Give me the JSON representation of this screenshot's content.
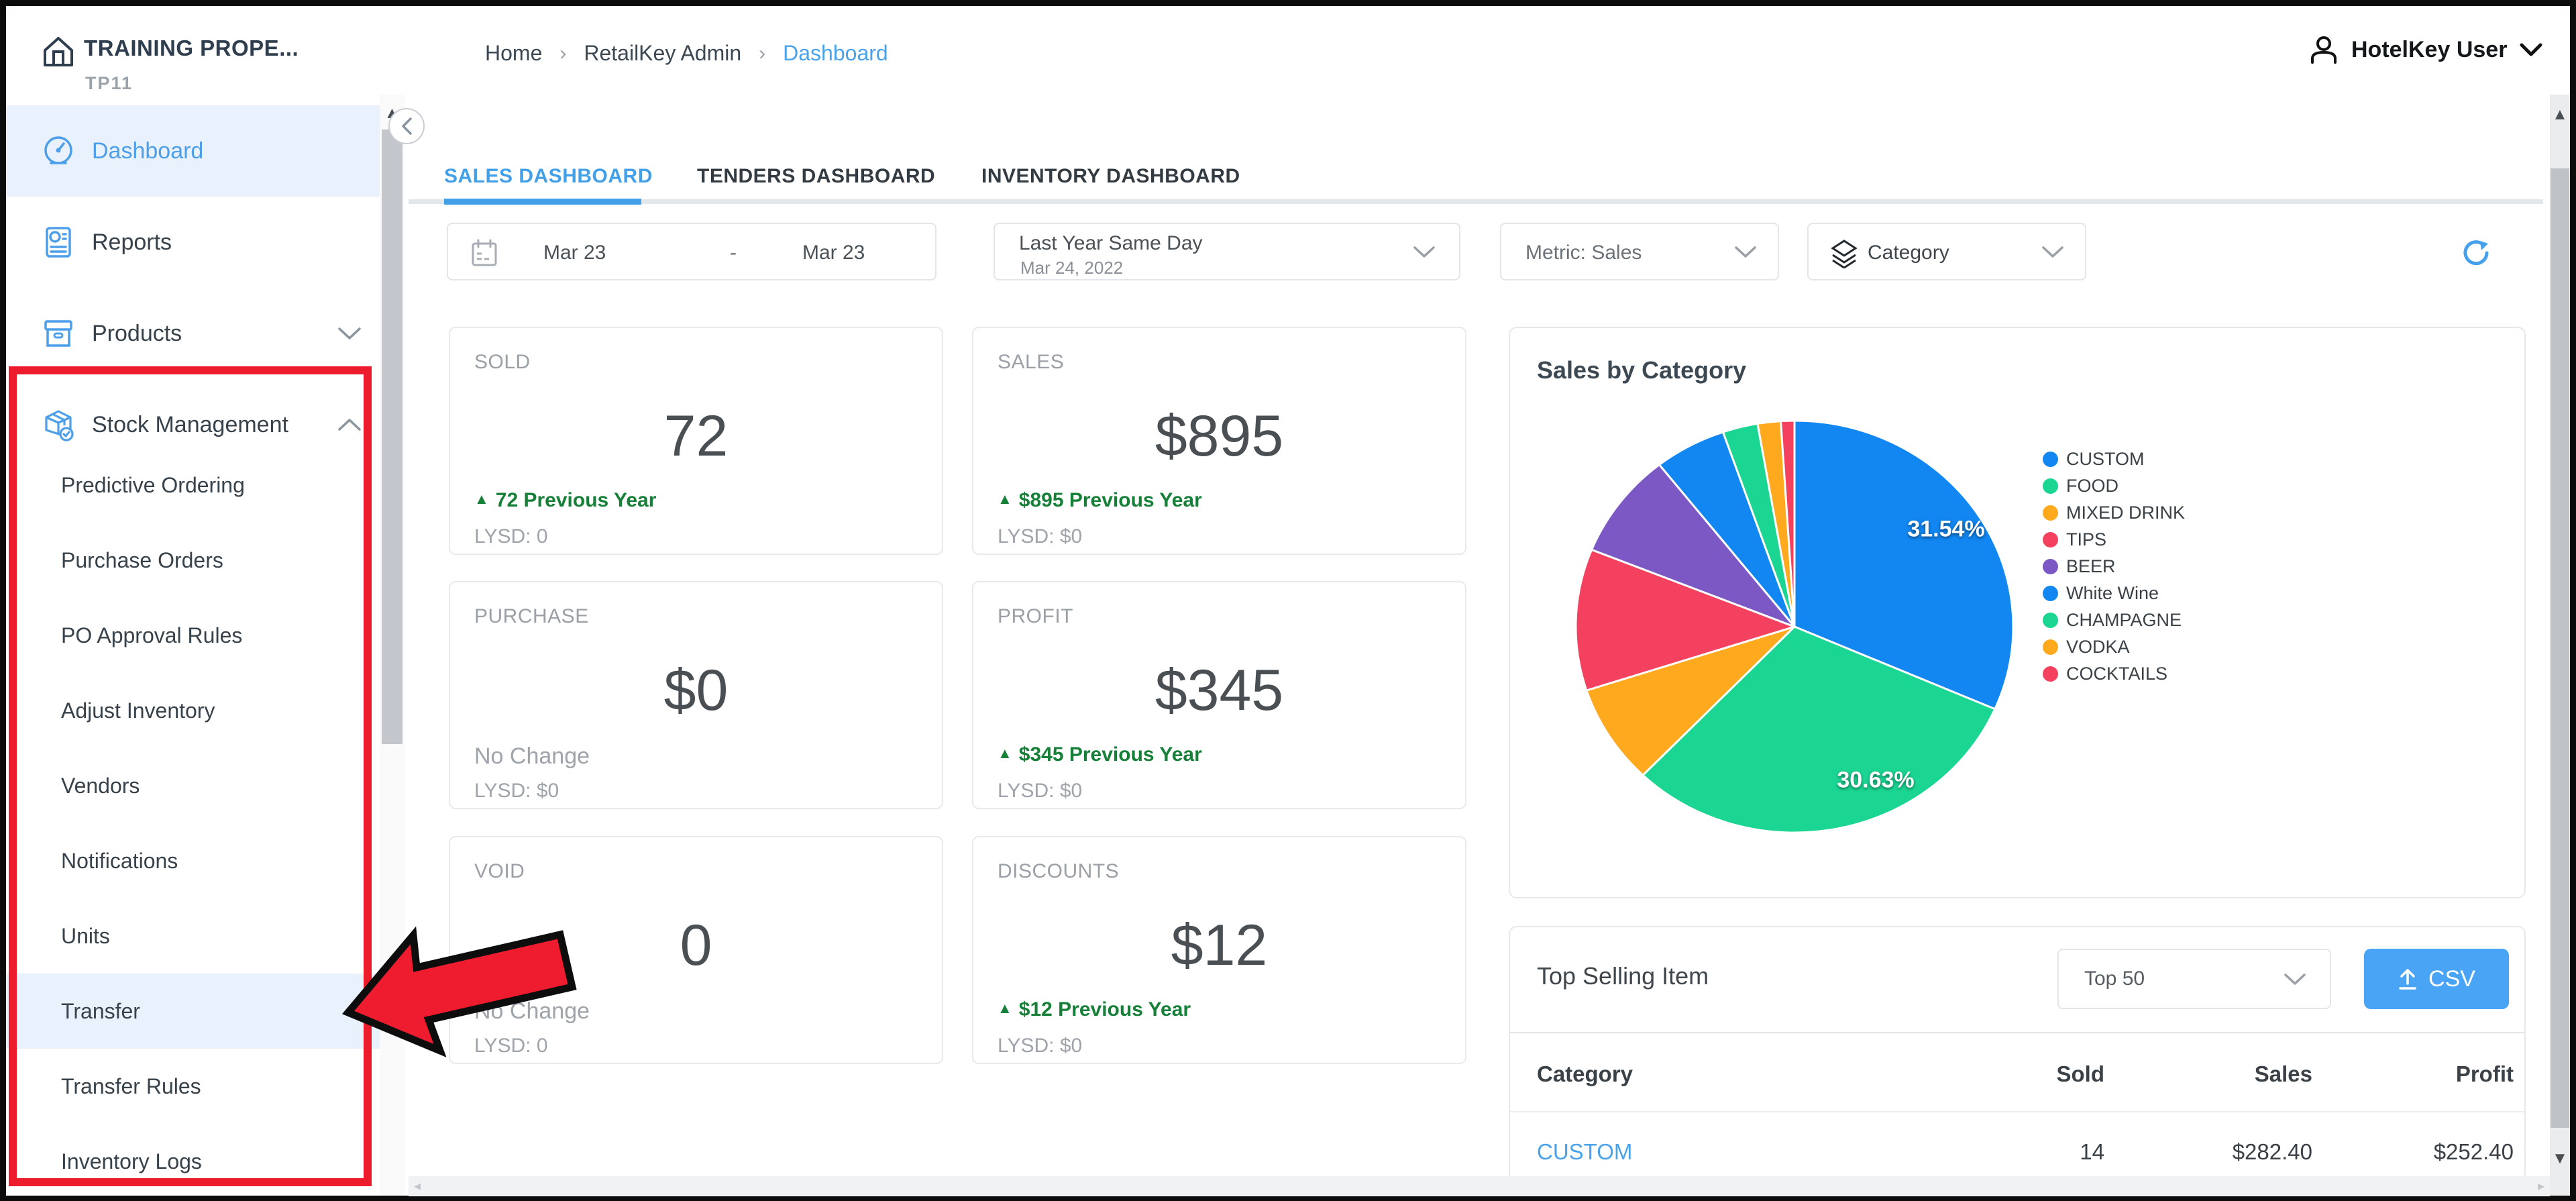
{
  "app": {
    "title": "TRAINING PROPE...",
    "code": "TP11"
  },
  "breadcrumb": {
    "home": "Home",
    "section": "RetailKey Admin",
    "current": "Dashboard"
  },
  "user": {
    "name": "HotelKey User"
  },
  "sidebar": {
    "items": [
      {
        "label": "Dashboard"
      },
      {
        "label": "Reports"
      },
      {
        "label": "Products"
      },
      {
        "label": "Stock Management"
      }
    ],
    "stock_children": [
      {
        "label": "Predictive Ordering"
      },
      {
        "label": "Purchase Orders"
      },
      {
        "label": "PO Approval Rules"
      },
      {
        "label": "Adjust Inventory"
      },
      {
        "label": "Vendors"
      },
      {
        "label": "Notifications"
      },
      {
        "label": "Units"
      },
      {
        "label": "Transfer"
      },
      {
        "label": "Transfer Rules"
      },
      {
        "label": "Inventory Logs"
      }
    ]
  },
  "tabs": [
    {
      "label": "SALES DASHBOARD"
    },
    {
      "label": "TENDERS DASHBOARD"
    },
    {
      "label": "INVENTORY DASHBOARD"
    }
  ],
  "filters": {
    "date_start": "Mar 23",
    "date_separator": "-",
    "date_end": "Mar 23",
    "period": "Last Year Same Day",
    "period_sub": "Mar 24, 2022",
    "metric": "Metric: Sales",
    "grouping": "Category"
  },
  "kpis": [
    {
      "title": "SOLD",
      "value": "72",
      "delta": "72 Previous Year",
      "delta_type": "up",
      "lysd": "LYSD: 0"
    },
    {
      "title": "SALES",
      "value": "$895",
      "delta": "$895 Previous Year",
      "delta_type": "up",
      "lysd": "LYSD: $0"
    },
    {
      "title": "PURCHASE",
      "value": "$0",
      "delta": "No Change",
      "delta_type": "none",
      "lysd": "LYSD: $0"
    },
    {
      "title": "PROFIT",
      "value": "$345",
      "delta": "$345 Previous Year",
      "delta_type": "up",
      "lysd": "LYSD: $0"
    },
    {
      "title": "VOID",
      "value": "0",
      "delta": "No Change",
      "delta_type": "none",
      "lysd": "LYSD: 0"
    },
    {
      "title": "DISCOUNTS",
      "value": "$12",
      "delta": "$12 Previous Year",
      "delta_type": "up",
      "lysd": "LYSD: $0"
    }
  ],
  "chart_data": {
    "type": "pie",
    "title": "Sales by Category",
    "categories": [
      "CUSTOM",
      "FOOD",
      "MIXED DRINK",
      "TIPS",
      "BEER",
      "White Wine",
      "CHAMPAGNE",
      "VODKA",
      "COCKTAILS"
    ],
    "values": [
      31.54,
      30.63,
      7.8,
      11.1,
      8.3,
      5.3,
      2.6,
      1.7,
      1.0
    ],
    "colors": [
      "#1287f1",
      "#1bd693",
      "#ffa91e",
      "#f4415f",
      "#7c58c5",
      "#1287f1",
      "#1bd693",
      "#ffa91e",
      "#f4415f"
    ],
    "shown_labels": [
      "31.54%",
      "30.63%"
    ],
    "legend_position": "right",
    "start_angle_deg": 0,
    "direction": "clockwise"
  },
  "top_selling": {
    "title": "Top Selling Item",
    "limit": "Top 50",
    "csv_label": "CSV",
    "headers": [
      "Category",
      "Sold",
      "Sales",
      "Profit"
    ],
    "rows": [
      [
        "CUSTOM",
        "14",
        "$282.40",
        "$252.40"
      ]
    ]
  },
  "colors": {
    "accent_blue": "#42a0e8",
    "active_row_bg": "#e9f1fc",
    "positive_green": "#178038",
    "annotation_red": "#ec1c2c",
    "csv_button_blue": "#4aa4f6"
  }
}
